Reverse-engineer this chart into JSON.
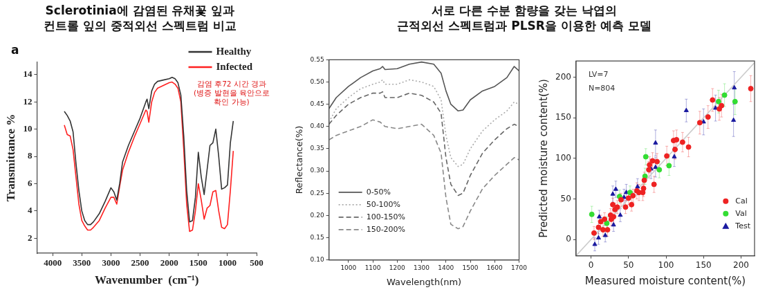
{
  "chart_data": [
    {
      "type": "line",
      "title": "Sclerotinia에 감염된 유채꽃 잎과\n컨트롤 잎의 중적외선 스펙트럼 비교",
      "xlabel": "Wavenumber  (cm⁻¹)",
      "ylabel": "Transmittance %",
      "annotations": [
        "a",
        "감염 후72 시간 경과 (병증 발현을 육안으로 확인 가능)"
      ],
      "x": [
        3800,
        3750,
        3700,
        3650,
        3600,
        3550,
        3500,
        3450,
        3400,
        3350,
        3300,
        3200,
        3100,
        3000,
        2950,
        2900,
        2850,
        2800,
        2700,
        2600,
        2500,
        2400,
        2380,
        2350,
        2300,
        2250,
        2200,
        2100,
        2000,
        1950,
        1900,
        1850,
        1800,
        1750,
        1700,
        1650,
        1600,
        1550,
        1500,
        1450,
        1400,
        1350,
        1300,
        1250,
        1200,
        1150,
        1100,
        1050,
        1000,
        950,
        900
      ],
      "series": [
        {
          "name": "Healthy",
          "color": "#333333",
          "values": [
            11.3,
            11.0,
            10.6,
            9.8,
            7.5,
            5.5,
            4.0,
            3.3,
            3.0,
            3.0,
            3.2,
            3.8,
            4.7,
            5.7,
            5.4,
            4.8,
            6.0,
            7.6,
            8.8,
            9.8,
            10.8,
            12.0,
            12.2,
            11.5,
            12.8,
            13.3,
            13.5,
            13.6,
            13.7,
            13.8,
            13.7,
            13.4,
            12.5,
            9.5,
            5.5,
            3.2,
            3.3,
            5.0,
            8.3,
            6.5,
            5.2,
            7.0,
            8.8,
            9.0,
            10.0,
            8.0,
            5.6,
            5.7,
            5.9,
            9.0,
            10.6
          ]
        },
        {
          "name": "Infected",
          "color": "#ff2020",
          "values": [
            10.3,
            9.6,
            9.5,
            8.5,
            6.5,
            4.5,
            3.3,
            2.9,
            2.6,
            2.6,
            2.8,
            3.3,
            4.2,
            5.0,
            5.0,
            4.5,
            5.8,
            7.0,
            8.3,
            9.4,
            10.4,
            11.4,
            11.3,
            10.5,
            12.0,
            12.7,
            13.0,
            13.2,
            13.4,
            13.45,
            13.3,
            13.0,
            12.0,
            8.5,
            4.5,
            2.5,
            2.6,
            4.0,
            6.0,
            4.8,
            3.4,
            4.2,
            4.4,
            5.4,
            5.5,
            4.0,
            2.8,
            2.7,
            3.0,
            5.5,
            8.4
          ]
        }
      ],
      "xlim": [
        4270,
        500
      ],
      "xticks": [
        4000,
        3500,
        3000,
        2500,
        2000,
        1500,
        1000,
        500
      ],
      "ylim": [
        0.9,
        14.9
      ],
      "yticks": [
        2,
        4,
        6,
        8,
        10,
        12,
        14
      ],
      "legend": "top right"
    },
    {
      "type": "line",
      "title": "서로 다른 수분 함량을 갖는 낙엽의\n근적외선 스펙트럼과 PLSR을 이용한 예측 모델",
      "xlabel": "Wavelength(nm)",
      "ylabel": "Reflectance(%)",
      "x": [
        920,
        950,
        1000,
        1050,
        1100,
        1130,
        1140,
        1150,
        1200,
        1250,
        1300,
        1350,
        1380,
        1400,
        1420,
        1450,
        1470,
        1500,
        1550,
        1600,
        1650,
        1680,
        1700
      ],
      "series": [
        {
          "name": "0-50%",
          "color": "#555555",
          "line_style": "solid",
          "values": [
            0.44,
            0.465,
            0.49,
            0.51,
            0.525,
            0.53,
            0.535,
            0.528,
            0.53,
            0.54,
            0.545,
            0.54,
            0.52,
            0.48,
            0.45,
            0.435,
            0.437,
            0.46,
            0.48,
            0.49,
            0.51,
            0.535,
            0.525
          ]
        },
        {
          "name": "50-100%",
          "color": "#aaaaaa",
          "line_style": "dotted",
          "values": [
            0.41,
            0.44,
            0.465,
            0.485,
            0.495,
            0.5,
            0.505,
            0.495,
            0.495,
            0.505,
            0.5,
            0.49,
            0.46,
            0.38,
            0.33,
            0.31,
            0.315,
            0.35,
            0.39,
            0.415,
            0.435,
            0.455,
            0.45
          ]
        },
        {
          "name": "100-150%",
          "color": "#666666",
          "line_style": "dashed",
          "values": [
            0.405,
            0.425,
            0.45,
            0.465,
            0.475,
            0.475,
            0.478,
            0.465,
            0.465,
            0.475,
            0.47,
            0.455,
            0.43,
            0.33,
            0.27,
            0.245,
            0.25,
            0.29,
            0.34,
            0.37,
            0.395,
            0.405,
            0.4
          ]
        },
        {
          "name": "150-200%",
          "color": "#888888",
          "line_style": "dashed",
          "values": [
            0.37,
            0.38,
            0.39,
            0.4,
            0.415,
            0.41,
            0.405,
            0.4,
            0.395,
            0.4,
            0.405,
            0.38,
            0.34,
            0.24,
            0.18,
            0.17,
            0.175,
            0.21,
            0.26,
            0.29,
            0.315,
            0.33,
            0.325
          ]
        }
      ],
      "xlim": [
        920,
        1700
      ],
      "xticks": [
        1000,
        1100,
        1200,
        1300,
        1400,
        1500,
        1600,
        1700
      ],
      "ylim": [
        0.1,
        0.55
      ],
      "yticks": [
        {
          "value": 0.1,
          "label": "0.10"
        },
        0.15,
        {
          "value": 0.2,
          "label": "0.20"
        },
        0.25,
        {
          "value": 0.3,
          "label": "0.30"
        },
        0.35,
        {
          "value": 0.4,
          "label": "0.40"
        },
        0.45,
        {
          "value": 0.5,
          "label": "0.50"
        },
        0.55
      ],
      "legend": "bottom left"
    },
    {
      "type": "scatter",
      "xlabel": "Measured moisture content(%)",
      "ylabel": "Predicted moisture content(%)",
      "annotations": [
        "LV=7",
        "N=804"
      ],
      "series": [
        {
          "type": "line",
          "color": "#cccccc",
          "marker": "none",
          "x": [
            -20,
            218
          ],
          "values": [
            -20,
            218
          ]
        },
        {
          "name": "Cal",
          "color": "#ee2222",
          "marker": "circle",
          "x": [
            4,
            10,
            13,
            16,
            18,
            22,
            26,
            27,
            29,
            30,
            32,
            35,
            40,
            46,
            50,
            54,
            56,
            61,
            64,
            69,
            70,
            71,
            77,
            78,
            82,
            84,
            88,
            101,
            110,
            112,
            114,
            122,
            130,
            145,
            156,
            162,
            171,
            174,
            213
          ],
          "values": [
            8,
            15,
            22,
            12,
            25,
            12,
            30,
            25,
            43,
            28,
            37,
            40,
            49,
            40,
            51,
            43,
            54,
            60,
            58,
            58,
            63,
            73,
            86,
            92,
            97,
            68,
            96,
            103,
            122,
            111,
            123,
            120,
            114,
            144,
            151,
            172,
            161,
            165,
            186
          ],
          "errors": [
            8,
            8,
            8,
            8,
            8,
            8,
            8,
            8,
            8,
            8,
            8,
            8,
            8,
            8,
            8,
            8,
            8,
            10,
            10,
            10,
            10,
            10,
            10,
            10,
            10,
            10,
            10,
            12,
            12,
            12,
            12,
            12,
            12,
            14,
            14,
            14,
            14,
            14,
            16
          ]
        },
        {
          "name": "Val",
          "color": "#33dd33",
          "marker": "circle",
          "x": [
            1,
            21,
            38,
            52,
            72,
            73,
            91,
            104,
            170,
            178,
            192
          ],
          "values": [
            31,
            20,
            53,
            58,
            78,
            102,
            86,
            91,
            170,
            178,
            170
          ],
          "errors": [
            10,
            8,
            8,
            8,
            10,
            10,
            10,
            12,
            14,
            14,
            16
          ]
        },
        {
          "name": "Test",
          "color": "#1a1aa0",
          "marker": "triangle",
          "x": [
            5,
            10,
            11,
            19,
            30,
            29,
            33,
            44,
            47,
            39,
            62,
            80,
            86,
            86,
            111,
            127,
            150,
            166,
            190,
            191
          ],
          "values": [
            -6,
            2,
            28,
            5,
            18,
            56,
            62,
            52,
            58,
            30,
            65,
            87,
            89,
            119,
            102,
            159,
            145,
            162,
            147,
            187
          ],
          "errors": [
            8,
            8,
            8,
            8,
            8,
            10,
            10,
            10,
            10,
            8,
            10,
            12,
            12,
            16,
            12,
            14,
            16,
            16,
            20,
            20
          ]
        }
      ],
      "xlim": [
        -20,
        218
      ],
      "xticks": [
        0,
        50,
        100,
        150,
        200
      ],
      "ylim": [
        -20,
        220
      ],
      "yticks": [
        0,
        50,
        100,
        150,
        200
      ],
      "legend": "bottom right"
    }
  ]
}
